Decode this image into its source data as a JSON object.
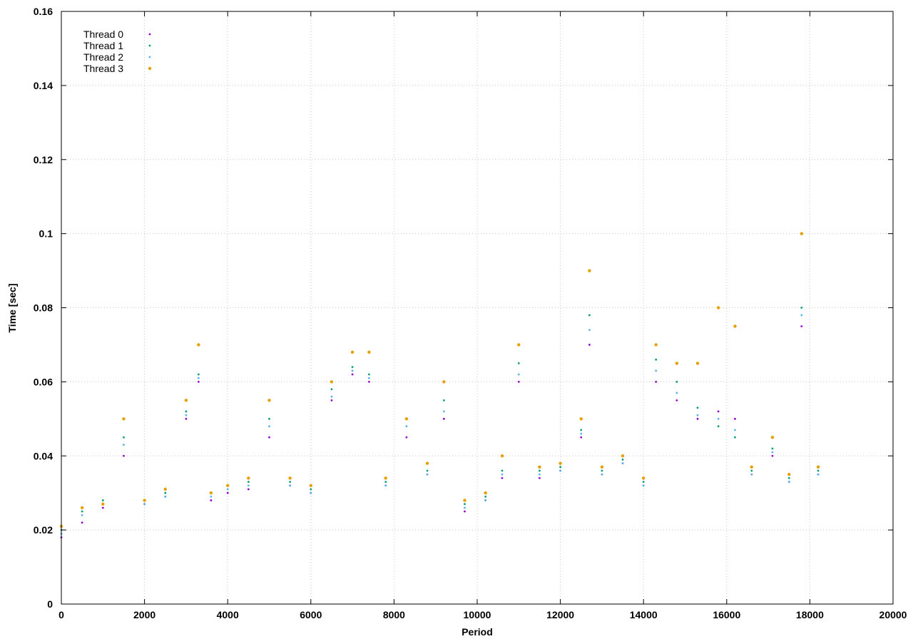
{
  "chart_data": {
    "type": "scatter",
    "title": "",
    "xlabel": "Period",
    "ylabel": "Time [sec]",
    "xlim": [
      0,
      20000
    ],
    "ylim": [
      0,
      0.16
    ],
    "grid": true,
    "legend_position": "top-left",
    "x_ticks": [
      "0",
      "2000",
      "4000",
      "6000",
      "8000",
      "10000",
      "12000",
      "14000",
      "16000",
      "18000",
      "20000"
    ],
    "y_ticks": [
      "0",
      "0.02",
      "0.04",
      "0.06",
      "0.08",
      "0.1",
      "0.12",
      "0.14",
      "0.16"
    ],
    "series": [
      {
        "name": "Thread 0",
        "color": "#9400d3",
        "x": [
          0,
          500,
          1000,
          1500,
          2000,
          2500,
          3000,
          3300,
          3600,
          4000,
          4500,
          5000,
          5500,
          6000,
          6500,
          7000,
          7400,
          7800,
          8300,
          8800,
          9200,
          9700,
          10200,
          10600,
          11000,
          11500,
          12000,
          12500,
          12700,
          13000,
          13500,
          14000,
          14300,
          14800,
          15300,
          15800,
          16200,
          16600,
          17100,
          17500,
          17800,
          18200
        ],
        "y": [
          0.018,
          0.022,
          0.026,
          0.04,
          0.027,
          0.029,
          0.05,
          0.06,
          0.028,
          0.03,
          0.031,
          0.045,
          0.032,
          0.03,
          0.055,
          0.062,
          0.06,
          0.032,
          0.045,
          0.035,
          0.05,
          0.025,
          0.028,
          0.034,
          0.06,
          0.034,
          0.036,
          0.045,
          0.07,
          0.035,
          0.038,
          0.032,
          0.06,
          0.055,
          0.05,
          0.052,
          0.05,
          0.035,
          0.04,
          0.033,
          0.075,
          0.035
        ]
      },
      {
        "name": "Thread 1",
        "color": "#009e73",
        "x": [
          0,
          500,
          1000,
          1500,
          2000,
          2500,
          3000,
          3300,
          3600,
          4000,
          4500,
          5000,
          5500,
          6000,
          6500,
          7000,
          7400,
          7800,
          8300,
          8800,
          9200,
          9700,
          10200,
          10600,
          11000,
          11500,
          12000,
          12500,
          12700,
          13000,
          13500,
          14000,
          14300,
          14800,
          15300,
          15800,
          16200,
          16600,
          17100,
          17500,
          17800,
          18200
        ],
        "y": [
          0.02,
          0.025,
          0.028,
          0.045,
          0.028,
          0.03,
          0.052,
          0.062,
          0.03,
          0.032,
          0.033,
          0.05,
          0.033,
          0.031,
          0.058,
          0.064,
          0.062,
          0.033,
          0.05,
          0.036,
          0.055,
          0.027,
          0.029,
          0.036,
          0.065,
          0.036,
          0.037,
          0.047,
          0.078,
          0.036,
          0.039,
          0.033,
          0.066,
          0.06,
          0.053,
          0.048,
          0.045,
          0.036,
          0.042,
          0.034,
          0.08,
          0.036
        ]
      },
      {
        "name": "Thread 2",
        "color": "#56b4e9",
        "x": [
          0,
          500,
          1000,
          1500,
          2000,
          2500,
          3000,
          3300,
          3600,
          4000,
          4500,
          5000,
          5500,
          6000,
          6500,
          7000,
          7400,
          7800,
          8300,
          8800,
          9200,
          9700,
          10200,
          10600,
          11000,
          11500,
          12000,
          12500,
          12700,
          13000,
          13500,
          14000,
          14300,
          14800,
          15300,
          15800,
          16200,
          16600,
          17100,
          17500,
          17800,
          18200
        ],
        "y": [
          0.019,
          0.024,
          0.027,
          0.043,
          0.027,
          0.029,
          0.051,
          0.061,
          0.029,
          0.031,
          0.032,
          0.048,
          0.032,
          0.03,
          0.056,
          0.063,
          0.061,
          0.032,
          0.048,
          0.035,
          0.052,
          0.026,
          0.028,
          0.035,
          0.062,
          0.035,
          0.036,
          0.046,
          0.074,
          0.035,
          0.038,
          0.032,
          0.063,
          0.057,
          0.051,
          0.05,
          0.047,
          0.035,
          0.041,
          0.033,
          0.078,
          0.035
        ]
      },
      {
        "name": "Thread 3",
        "color": "#e69f00",
        "x": [
          0,
          500,
          1000,
          1500,
          2000,
          2500,
          3000,
          3300,
          3600,
          4000,
          4500,
          5000,
          5500,
          6000,
          6500,
          7000,
          7400,
          7800,
          8300,
          8800,
          9200,
          9700,
          10200,
          10600,
          11000,
          11500,
          12000,
          12500,
          12700,
          13000,
          13500,
          14000,
          14300,
          14800,
          15300,
          15800,
          16200,
          16600,
          17100,
          17500,
          17800,
          18200
        ],
        "y": [
          0.021,
          0.026,
          0.027,
          0.05,
          0.028,
          0.031,
          0.055,
          0.07,
          0.03,
          0.032,
          0.034,
          0.055,
          0.034,
          0.032,
          0.06,
          0.068,
          0.068,
          0.034,
          0.05,
          0.038,
          0.06,
          0.028,
          0.03,
          0.04,
          0.07,
          0.037,
          0.038,
          0.05,
          0.09,
          0.037,
          0.04,
          0.034,
          0.07,
          0.065,
          0.065,
          0.08,
          0.075,
          0.037,
          0.045,
          0.035,
          0.1,
          0.037
        ]
      }
    ]
  }
}
